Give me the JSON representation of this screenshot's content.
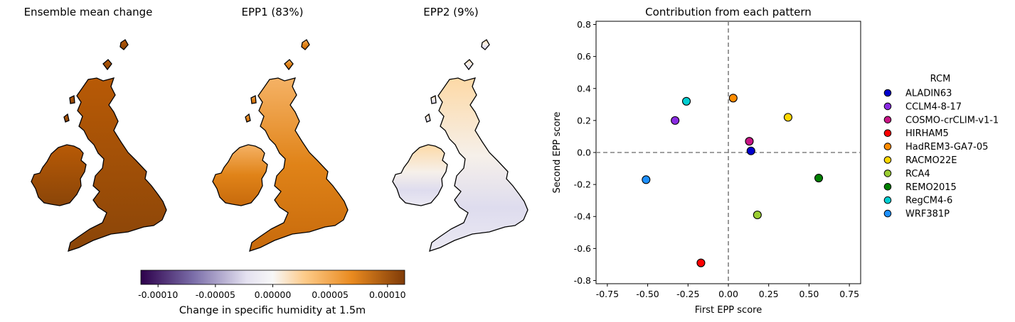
{
  "maps": {
    "titles": [
      "Ensemble mean change",
      "EPP1 (83%)",
      "EPP2 (9%)"
    ]
  },
  "colorbar": {
    "label": "Change in specific humidity at 1.5m",
    "range": [
      -0.000115,
      0.000115
    ],
    "ticks": [
      "-0.00010",
      "-0.00005",
      "0.00000",
      "0.00005",
      "0.00010"
    ],
    "tick_values": [
      -0.0001,
      -5e-05,
      0,
      5e-05,
      0.0001
    ],
    "colors": [
      "#2d004b",
      "#7b6ea9",
      "#e4e1f0",
      "#f7f7f7",
      "#fdcb8a",
      "#e98a1f",
      "#7f3b08"
    ]
  },
  "chart_data": {
    "type": "scatter",
    "title": "Contribution from each pattern",
    "xlabel": "First EPP score",
    "ylabel": "Second EPP score",
    "xlim": [
      -0.82,
      0.82
    ],
    "ylim": [
      -0.82,
      0.82
    ],
    "xticks": [
      "-0.75",
      "-0.50",
      "-0.25",
      "0.00",
      "0.25",
      "0.50",
      "0.75"
    ],
    "xtick_values": [
      -0.75,
      -0.5,
      -0.25,
      0,
      0.25,
      0.5,
      0.75
    ],
    "yticks": [
      "-0.8",
      "-0.6",
      "-0.4",
      "-0.2",
      "0.0",
      "0.2",
      "0.4",
      "0.6",
      "0.8"
    ],
    "ytick_values": [
      -0.8,
      -0.6,
      -0.4,
      -0.2,
      0,
      0.2,
      0.4,
      0.6,
      0.8
    ],
    "reference_lines": {
      "x": 0,
      "y": 0,
      "style": "dashed",
      "color": "#808080"
    },
    "legend_title": "RCM",
    "legend_position": "right",
    "points": [
      {
        "name": "ALADIN63",
        "x": 0.14,
        "y": 0.01,
        "color": "#0000cd"
      },
      {
        "name": "CCLM4-8-17",
        "x": -0.33,
        "y": 0.2,
        "color": "#8a2be2"
      },
      {
        "name": "COSMO-crCLIM-v1-1",
        "x": 0.13,
        "y": 0.07,
        "color": "#c71585"
      },
      {
        "name": "HIRHAM5",
        "x": -0.17,
        "y": -0.69,
        "color": "#ff0000"
      },
      {
        "name": "HadREM3-GA7-05",
        "x": 0.03,
        "y": 0.34,
        "color": "#ff8c00"
      },
      {
        "name": "RACMO22E",
        "x": 0.37,
        "y": 0.22,
        "color": "#ffd700"
      },
      {
        "name": "RCA4",
        "x": 0.18,
        "y": -0.39,
        "color": "#9acd32"
      },
      {
        "name": "REMO2015",
        "x": 0.56,
        "y": -0.16,
        "color": "#008000"
      },
      {
        "name": "RegCM4-6",
        "x": -0.26,
        "y": 0.32,
        "color": "#00ced1"
      },
      {
        "name": "WRF381P",
        "x": -0.51,
        "y": -0.17,
        "color": "#1e90ff"
      }
    ]
  }
}
